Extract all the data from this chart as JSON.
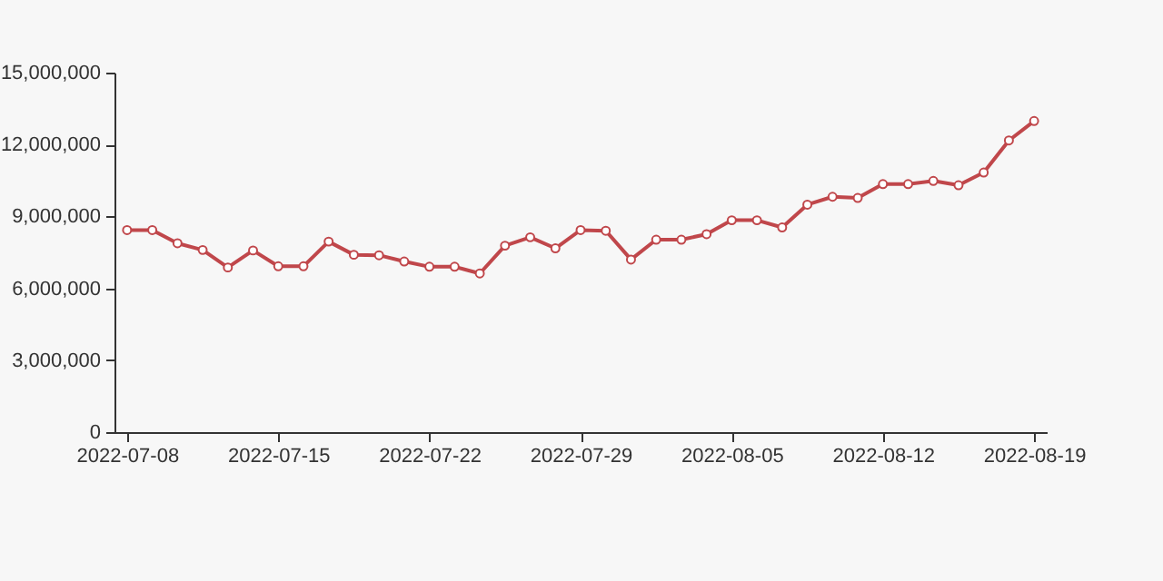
{
  "chart_data": {
    "type": "line",
    "categories": [
      "2022-07-08",
      null,
      null,
      null,
      null,
      null,
      "2022-07-15",
      null,
      null,
      null,
      null,
      null,
      "2022-07-22",
      null,
      null,
      null,
      null,
      null,
      "2022-07-29",
      null,
      null,
      null,
      null,
      null,
      "2022-08-05",
      null,
      null,
      null,
      null,
      null,
      "2022-08-12",
      null,
      null,
      null,
      null,
      null,
      "2022-08-19"
    ],
    "series": [
      {
        "color": "#c0474b",
        "values": [
          8430000,
          8430000,
          7880000,
          7600000,
          6870000,
          7580000,
          6920000,
          6920000,
          7950000,
          7400000,
          7380000,
          7120000,
          6900000,
          6900000,
          6620000,
          7780000,
          8130000,
          7670000,
          8430000,
          8400000,
          7200000,
          8030000,
          8030000,
          8260000,
          8840000,
          8840000,
          8540000,
          9490000,
          9820000,
          9770000,
          10350000,
          10350000,
          10480000,
          10300000,
          10830000,
          12170000,
          12980000
        ]
      }
    ],
    "ylim": [
      0,
      15000000
    ],
    "yticks": [
      0,
      {
        "value": 3000000,
        "label": "3,000,000"
      },
      {
        "value": 6000000,
        "label": "6,000,000"
      },
      {
        "value": 9000000,
        "label": "9,000,000"
      },
      {
        "value": 12000000,
        "label": "12,000,000"
      },
      {
        "value": 15000000,
        "label": "15,000,000"
      }
    ],
    "grid": false,
    "legend": false,
    "marker": "circle",
    "line_style": "solid"
  }
}
